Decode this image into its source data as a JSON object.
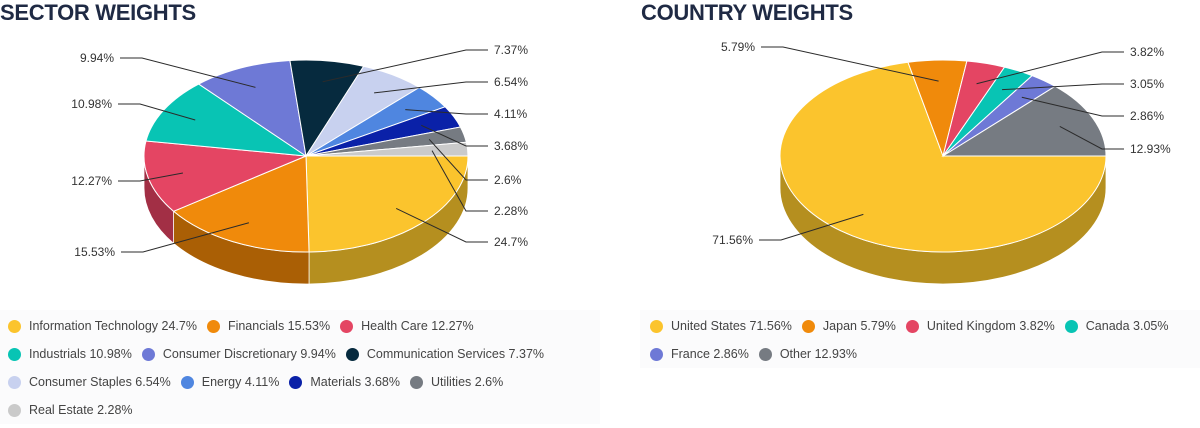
{
  "chart_data": [
    {
      "type": "pie",
      "title": "SECTOR WEIGHTS",
      "unit": "%",
      "slices": [
        {
          "name": "Information Technology",
          "value": 24.7,
          "label": "24.7%",
          "color": "#fbc42d",
          "side": "#b58f1f"
        },
        {
          "name": "Financials",
          "value": 15.53,
          "label": "15.53%",
          "color": "#f08a0b",
          "side": "#aa5f05"
        },
        {
          "name": "Health Care",
          "value": 12.27,
          "label": "12.27%",
          "color": "#e44563",
          "side": "#a22f45"
        },
        {
          "name": "Industrials",
          "value": 10.98,
          "label": "10.98%",
          "color": "#08c4b4",
          "side": "#068c80"
        },
        {
          "name": "Consumer Discretionary",
          "value": 9.94,
          "label": "9.94%",
          "color": "#6e79d6",
          "side": "#4f579a"
        },
        {
          "name": "Communication Services",
          "value": 7.37,
          "label": "7.37%",
          "color": "#062a3e",
          "side": "#041d2c"
        },
        {
          "name": "Consumer Staples",
          "value": 6.54,
          "label": "6.54%",
          "color": "#c8d1ef",
          "side": "#8f96ac"
        },
        {
          "name": "Energy",
          "value": 4.11,
          "label": "4.11%",
          "color": "#4f86e0",
          "side": "#38609f"
        },
        {
          "name": "Materials",
          "value": 3.68,
          "label": "3.68%",
          "color": "#0a21a8",
          "side": "#071778"
        },
        {
          "name": "Utilities",
          "value": 2.6,
          "label": "2.6%",
          "color": "#767b82",
          "side": "#54585d"
        },
        {
          "name": "Real Estate",
          "value": 2.28,
          "label": "2.28%",
          "color": "#cacaca",
          "side": "#909090"
        }
      ],
      "legend": [
        "Information Technology 24.7%",
        "Financials 15.53%",
        "Health Care 12.27%",
        "Industrials 10.98%",
        "Consumer Discretionary 9.94%",
        "Communication Services 7.37%",
        "Consumer Staples 6.54%",
        "Energy 4.11%",
        "Materials 3.68%",
        "Utilities 2.6%",
        "Real Estate 2.28%"
      ]
    },
    {
      "type": "pie",
      "title": "COUNTRY WEIGHTS",
      "unit": "%",
      "slices": [
        {
          "name": "United States",
          "value": 71.56,
          "label": "71.56%",
          "color": "#fbc42d",
          "side": "#b58f1f"
        },
        {
          "name": "Japan",
          "value": 5.79,
          "label": "5.79%",
          "color": "#f08a0b",
          "side": "#aa5f05"
        },
        {
          "name": "United Kingdom",
          "value": 3.82,
          "label": "3.82%",
          "color": "#e44563",
          "side": "#a22f45"
        },
        {
          "name": "Canada",
          "value": 3.05,
          "label": "3.05%",
          "color": "#08c4b4",
          "side": "#068c80"
        },
        {
          "name": "France",
          "value": 2.86,
          "label": "2.86%",
          "color": "#6e79d6",
          "side": "#4f579a"
        },
        {
          "name": "Other",
          "value": 12.93,
          "label": "12.93%",
          "color": "#767b82",
          "side": "#54585d"
        }
      ],
      "legend": [
        "United States 71.56%",
        "Japan 5.79%",
        "United Kingdom 3.82%",
        "Canada 3.05%",
        "France 2.86%",
        "Other 12.93%"
      ]
    }
  ]
}
